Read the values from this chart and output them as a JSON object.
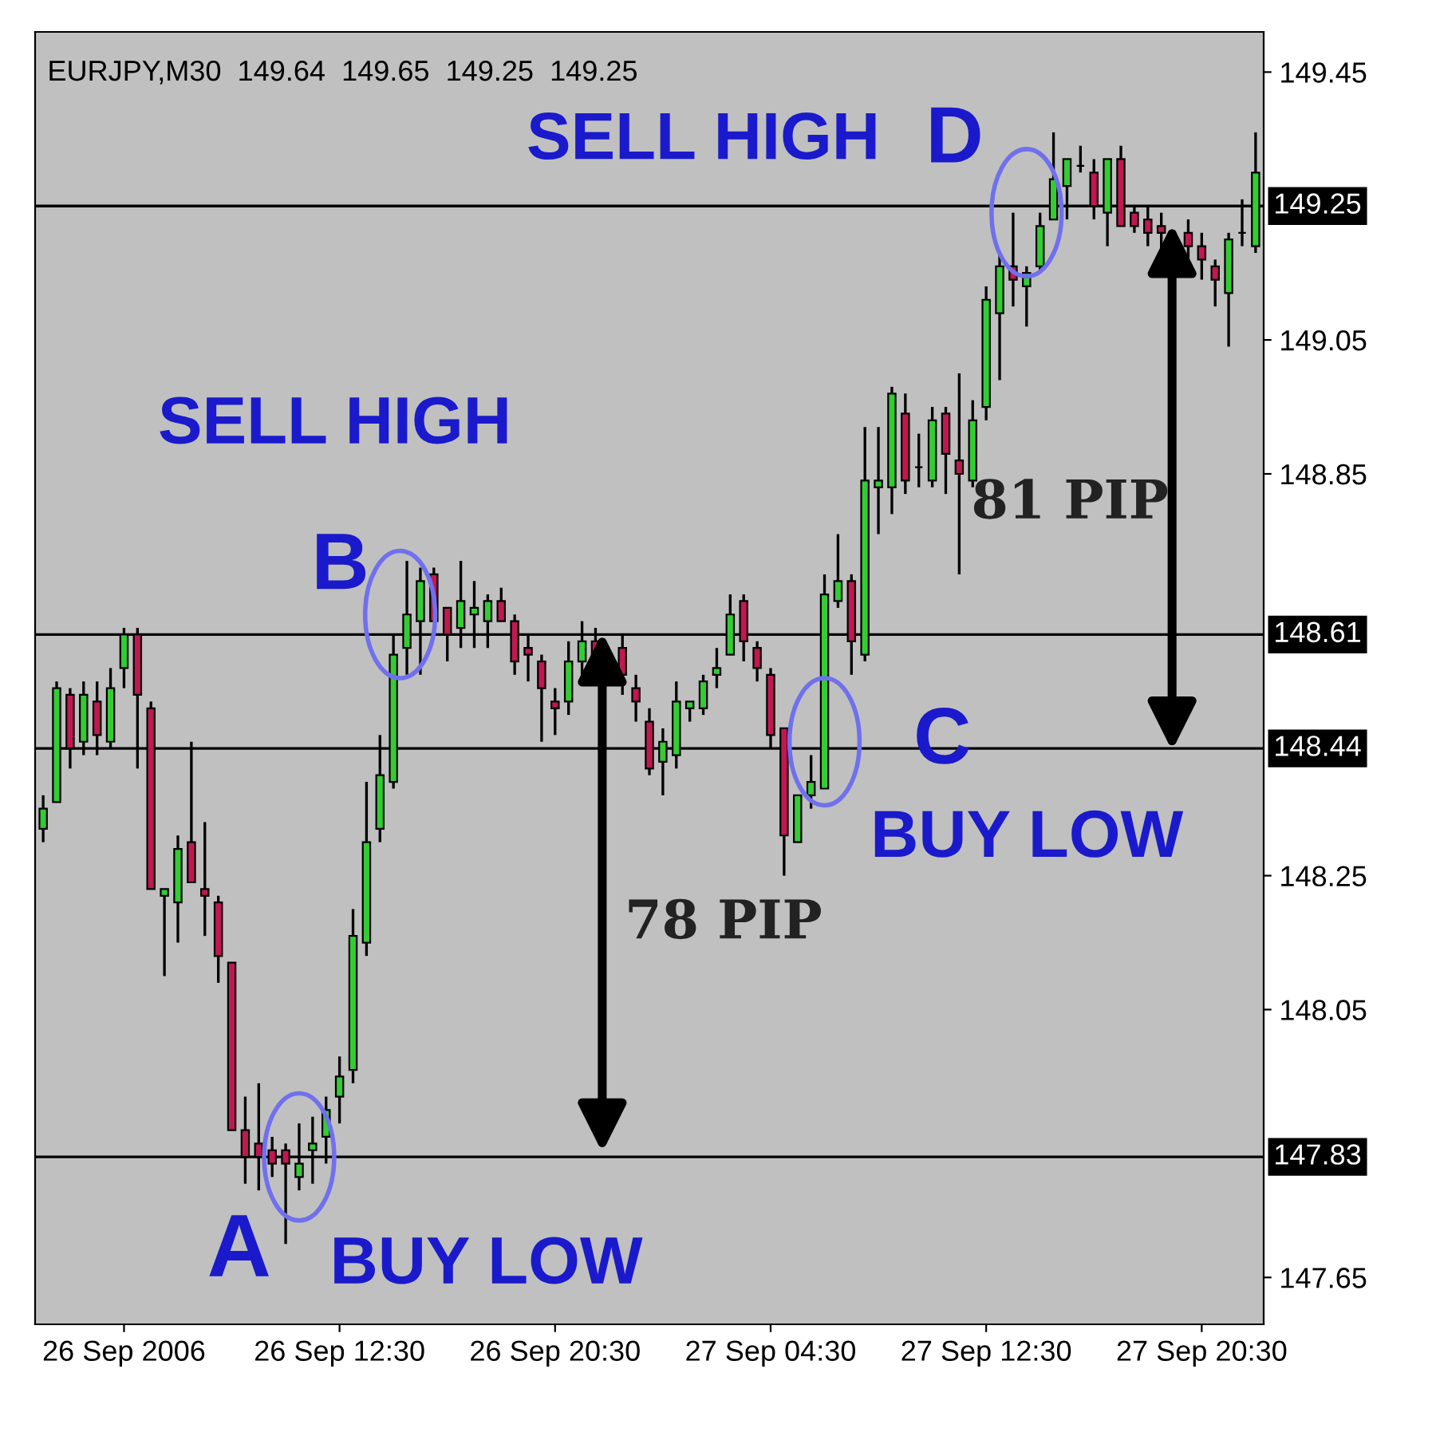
{
  "chart_data": {
    "type": "candlestick",
    "title": "EURJPY,M30  149.64  149.65  149.25  149.25",
    "categories": [
      null,
      null,
      null,
      null,
      null,
      null,
      "26 Sep 2006",
      null,
      null,
      null,
      null,
      null,
      null,
      null,
      null,
      null,
      null,
      null,
      null,
      null,
      null,
      null,
      "26 Sep 12:30",
      null,
      null,
      null,
      null,
      null,
      null,
      null,
      null,
      null,
      null,
      null,
      null,
      null,
      null,
      null,
      "26 Sep 20:30",
      null,
      null,
      null,
      null,
      null,
      null,
      null,
      null,
      null,
      null,
      null,
      null,
      null,
      null,
      null,
      "27 Sep 04:30",
      null,
      null,
      null,
      null,
      null,
      null,
      null,
      null,
      null,
      null,
      null,
      null,
      null,
      null,
      null,
      "27 Sep 12:30",
      null,
      null,
      null,
      null,
      null,
      null,
      null,
      null,
      null,
      null,
      null,
      null,
      null,
      null,
      null,
      "27 Sep 20:30",
      null,
      null,
      null,
      null
    ],
    "ohlc": [
      [
        148.32,
        148.37,
        148.3,
        148.35
      ],
      [
        148.36,
        148.54,
        148.36,
        148.53
      ],
      [
        148.52,
        148.53,
        148.41,
        148.44
      ],
      [
        148.45,
        148.54,
        148.43,
        148.52
      ],
      [
        148.51,
        148.54,
        148.43,
        148.46
      ],
      [
        148.45,
        148.56,
        148.44,
        148.53
      ],
      [
        148.56,
        148.62,
        148.53,
        148.61
      ],
      [
        148.61,
        148.62,
        148.41,
        148.52
      ],
      [
        148.5,
        148.51,
        148.23,
        148.23
      ],
      [
        148.22,
        148.23,
        148.1,
        148.23
      ],
      [
        148.21,
        148.31,
        148.15,
        148.29
      ],
      [
        148.3,
        148.45,
        148.24,
        148.24
      ],
      [
        148.23,
        148.33,
        148.16,
        148.22
      ],
      [
        148.21,
        148.22,
        148.09,
        148.13
      ],
      [
        148.12,
        148.12,
        147.87,
        147.87
      ],
      [
        147.87,
        147.92,
        147.79,
        147.83
      ],
      [
        147.85,
        147.94,
        147.78,
        147.83
      ],
      [
        147.84,
        147.86,
        147.8,
        147.82
      ],
      [
        147.84,
        147.85,
        147.7,
        147.82
      ],
      [
        147.8,
        147.88,
        147.78,
        147.82
      ],
      [
        147.84,
        147.89,
        147.79,
        147.85
      ],
      [
        147.86,
        147.92,
        147.82,
        147.9
      ],
      [
        147.92,
        147.98,
        147.88,
        147.95
      ],
      [
        147.96,
        148.2,
        147.94,
        148.16
      ],
      [
        148.15,
        148.39,
        148.13,
        148.3
      ],
      [
        148.32,
        148.46,
        148.3,
        148.4
      ],
      [
        148.39,
        148.61,
        148.38,
        148.58
      ],
      [
        148.59,
        148.72,
        148.55,
        148.64
      ],
      [
        148.63,
        148.71,
        148.55,
        148.69
      ],
      [
        148.7,
        148.71,
        148.63,
        148.63
      ],
      [
        148.65,
        148.65,
        148.57,
        148.61
      ],
      [
        148.62,
        148.72,
        148.59,
        148.66
      ],
      [
        148.64,
        148.69,
        148.59,
        148.65
      ],
      [
        148.63,
        148.67,
        148.59,
        148.66
      ],
      [
        148.66,
        148.68,
        148.63,
        148.63
      ],
      [
        148.63,
        148.64,
        148.55,
        148.57
      ],
      [
        148.59,
        148.61,
        148.54,
        148.58
      ],
      [
        148.57,
        148.58,
        148.45,
        148.53
      ],
      [
        148.51,
        148.53,
        148.46,
        148.5
      ],
      [
        148.51,
        148.6,
        148.49,
        148.57
      ],
      [
        148.57,
        148.63,
        148.55,
        148.6
      ],
      [
        148.6,
        148.62,
        148.54,
        148.58
      ],
      null,
      [
        148.59,
        148.61,
        148.52,
        148.55
      ],
      [
        148.53,
        148.55,
        148.48,
        148.51
      ],
      [
        148.48,
        148.5,
        148.4,
        148.41
      ],
      [
        148.42,
        148.47,
        148.37,
        148.45
      ],
      [
        148.43,
        148.54,
        148.41,
        148.51
      ],
      [
        148.5,
        148.51,
        148.48,
        148.51
      ],
      [
        148.5,
        148.55,
        148.49,
        148.54
      ],
      [
        148.55,
        148.59,
        148.53,
        148.56
      ],
      [
        148.58,
        148.67,
        148.58,
        148.64
      ],
      [
        148.66,
        148.67,
        148.57,
        148.6
      ],
      [
        148.59,
        148.6,
        148.54,
        148.56
      ],
      [
        148.55,
        148.56,
        148.44,
        148.46
      ],
      [
        148.47,
        148.47,
        148.25,
        148.31
      ],
      [
        148.3,
        148.37,
        148.3,
        148.37
      ],
      [
        148.37,
        148.43,
        148.35,
        148.39
      ],
      [
        148.38,
        148.7,
        148.38,
        148.67
      ],
      [
        148.66,
        148.76,
        148.65,
        148.69
      ],
      [
        148.69,
        148.7,
        148.55,
        148.6
      ],
      [
        148.58,
        148.92,
        148.57,
        148.84
      ],
      [
        148.83,
        148.92,
        148.76,
        148.84
      ],
      [
        148.83,
        148.98,
        148.79,
        148.97
      ],
      [
        148.94,
        148.97,
        148.82,
        148.84
      ],
      [
        148.86,
        148.91,
        148.83,
        148.86
      ],
      [
        148.84,
        148.95,
        148.83,
        148.93
      ],
      [
        148.94,
        148.95,
        148.82,
        148.88
      ],
      [
        148.87,
        149.0,
        148.7,
        148.85
      ],
      [
        148.84,
        148.96,
        148.83,
        148.93
      ],
      [
        148.95,
        149.13,
        148.93,
        149.11
      ],
      [
        149.09,
        149.18,
        148.99,
        149.16
      ],
      [
        149.16,
        149.24,
        149.1,
        149.14
      ],
      [
        149.13,
        149.16,
        149.07,
        149.15
      ],
      [
        149.16,
        149.24,
        149.15,
        149.22
      ],
      [
        149.23,
        149.36,
        149.23,
        149.29
      ],
      [
        149.28,
        149.32,
        149.23,
        149.32
      ],
      [
        149.31,
        149.34,
        149.3,
        149.31
      ],
      [
        149.3,
        149.32,
        149.23,
        149.25
      ],
      [
        149.24,
        149.32,
        149.19,
        149.32
      ],
      [
        149.32,
        149.34,
        149.22,
        149.22
      ],
      [
        149.24,
        149.25,
        149.21,
        149.22
      ],
      [
        149.23,
        149.25,
        149.19,
        149.21
      ],
      [
        149.22,
        149.24,
        149.18,
        149.21
      ],
      null,
      [
        149.21,
        149.23,
        149.15,
        149.19
      ],
      [
        149.19,
        149.21,
        149.14,
        149.17
      ],
      [
        149.16,
        149.17,
        149.1,
        149.14
      ],
      [
        149.12,
        149.21,
        149.04,
        149.2
      ],
      [
        149.21,
        149.26,
        149.19,
        149.21
      ],
      [
        149.19,
        149.36,
        149.18,
        149.3
      ]
    ],
    "ylim": [
      147.58,
      149.51
    ],
    "yticks": [
      149.45,
      149.05,
      148.85,
      148.25,
      148.05,
      147.65
    ],
    "ref_lines": [
      {
        "axis": "y",
        "value": 149.25,
        "label": "149.25"
      },
      {
        "axis": "y",
        "value": 148.61,
        "label": "148.61"
      },
      {
        "axis": "y",
        "value": 148.44,
        "label": "148.44"
      },
      {
        "axis": "y",
        "value": 147.83,
        "label": "147.83"
      }
    ],
    "annotations": [
      "SELL HIGH",
      "D",
      "SELL HIGH",
      "B",
      "A",
      "BUY LOW",
      "C",
      "BUY LOW",
      "78 PIP",
      "81 PIP"
    ],
    "grid": false
  }
}
